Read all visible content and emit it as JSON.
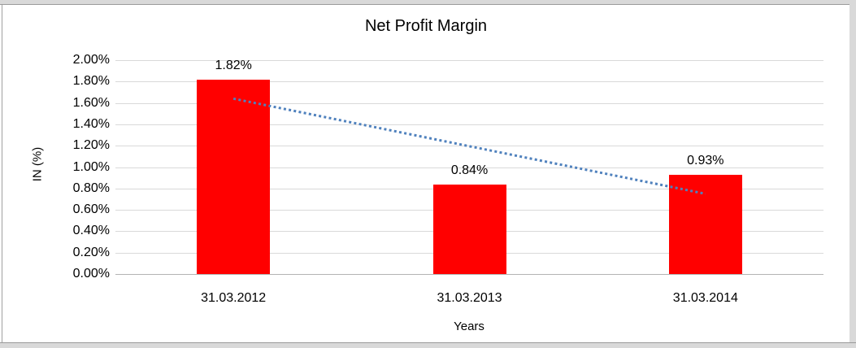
{
  "chart_data": {
    "type": "bar",
    "title": "Net Profit Margin",
    "categories": [
      "31.03.2012",
      "31.03.2013",
      "31.03.2014"
    ],
    "values": [
      1.82,
      0.84,
      0.93
    ],
    "data_labels": [
      "1.82%",
      "0.84%",
      "0.93%"
    ],
    "xlabel": "Years",
    "ylabel": "IN (%)",
    "ylim": [
      0,
      2.0
    ],
    "ytick_step": 0.2,
    "ytick_labels": [
      "0.00%",
      "0.20%",
      "0.40%",
      "0.60%",
      "0.80%",
      "1.00%",
      "1.20%",
      "1.40%",
      "1.60%",
      "1.80%",
      "2.00%"
    ],
    "grid": true,
    "legend": "none",
    "trendline": {
      "type": "linear",
      "style": "dotted",
      "start_value": 1.64,
      "end_value": 0.75
    },
    "colors": {
      "bar": "#ff0000",
      "trendline_stroke": "#4f81bd",
      "gridline": "#d9d9d9",
      "axis_line": "#b3b3b3",
      "text": "#000000",
      "background": "#ffffff",
      "frame": "#d9d9d9"
    }
  }
}
